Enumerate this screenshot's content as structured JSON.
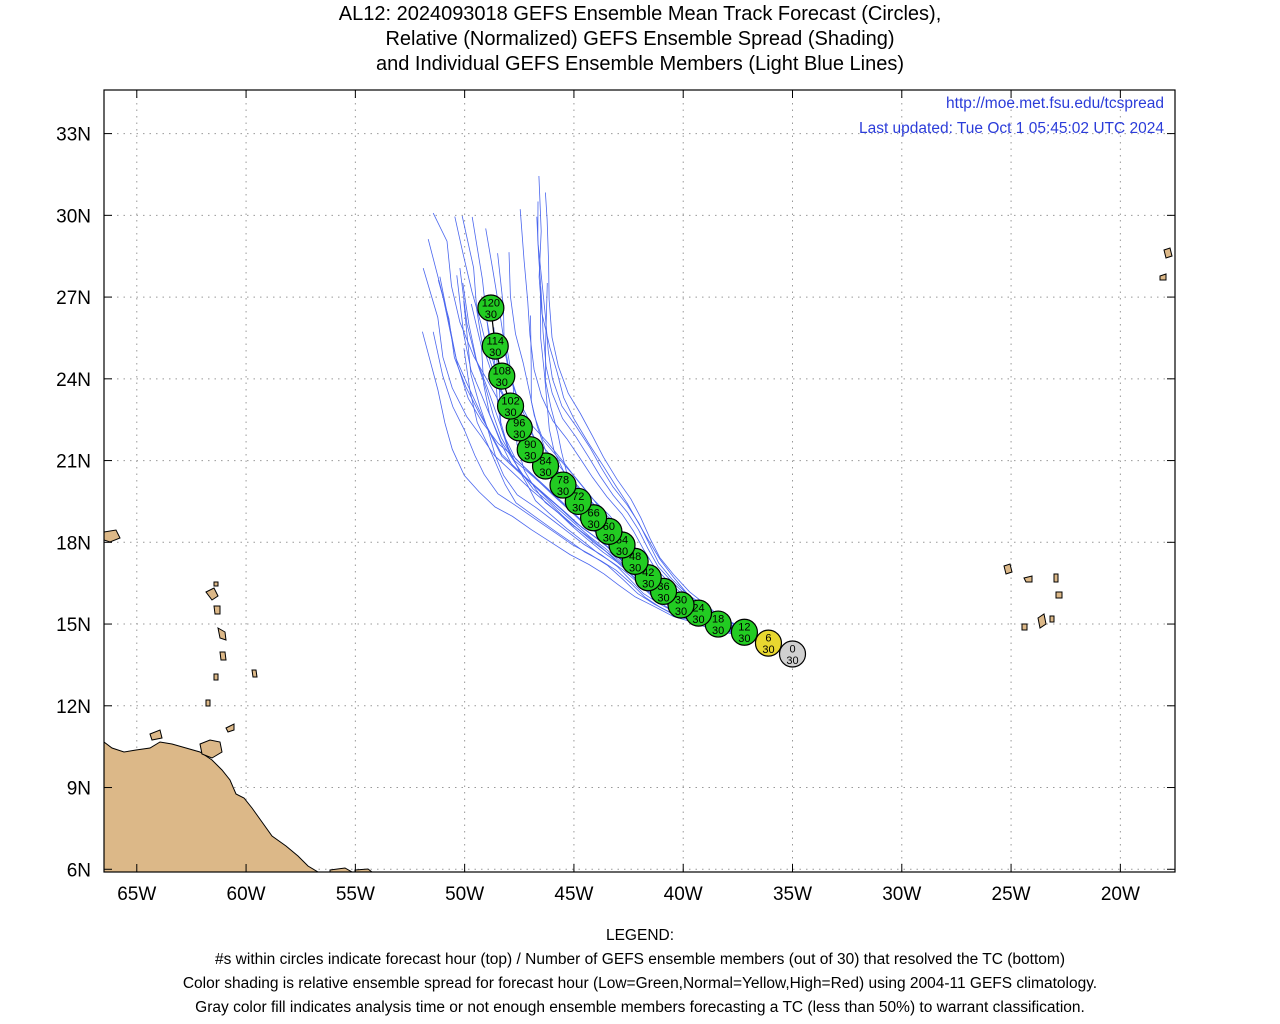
{
  "title": {
    "line1": "AL12: 2024093018 GEFS Ensemble Mean Track Forecast (Circles),",
    "line2": "Relative (Normalized) GEFS Ensemble Spread (Shading)",
    "line3": "and Individual GEFS Ensemble Members (Light Blue Lines)"
  },
  "map_info": {
    "url": "http://moe.met.fsu.edu/tcspread",
    "last_updated": "Last updated: Tue Oct  1 05:45:02 UTC 2024"
  },
  "axes": {
    "lon_range": [
      -66.5,
      -17.5
    ],
    "lat_range": [
      5.9,
      34.6
    ],
    "lon_ticks": [
      -65,
      -60,
      -55,
      -50,
      -45,
      -40,
      -35,
      -30,
      -25,
      -20
    ],
    "lon_labels": [
      "65W",
      "60W",
      "55W",
      "50W",
      "45W",
      "40W",
      "35W",
      "30W",
      "25W",
      "20W"
    ],
    "lat_ticks": [
      6,
      9,
      12,
      15,
      18,
      21,
      24,
      27,
      30,
      33
    ],
    "lat_labels": [
      "6N",
      "9N",
      "12N",
      "15N",
      "18N",
      "21N",
      "24N",
      "27N",
      "30N",
      "33N"
    ],
    "grid": "dotted"
  },
  "colors": {
    "land": "#dcb888",
    "low_spread": "#22cc22",
    "normal_spread": "#e8d830",
    "analysis": "#d0d0d0",
    "member_lines": "#4a66ee",
    "frame": "#000000"
  },
  "forecast_points": [
    {
      "hour": "0",
      "members": "30",
      "lon": -35.0,
      "lat": 13.9,
      "color": "gray"
    },
    {
      "hour": "6",
      "members": "30",
      "lon": -36.1,
      "lat": 14.3,
      "color": "yellow"
    },
    {
      "hour": "12",
      "members": "30",
      "lon": -37.2,
      "lat": 14.7,
      "color": "green"
    },
    {
      "hour": "18",
      "members": "30",
      "lon": -38.4,
      "lat": 15.0,
      "color": "green"
    },
    {
      "hour": "24",
      "members": "30",
      "lon": -39.3,
      "lat": 15.4,
      "color": "green"
    },
    {
      "hour": "30",
      "members": "30",
      "lon": -40.1,
      "lat": 15.7,
      "color": "green"
    },
    {
      "hour": "36",
      "members": "30",
      "lon": -40.9,
      "lat": 16.2,
      "color": "green"
    },
    {
      "hour": "42",
      "members": "30",
      "lon": -41.6,
      "lat": 16.7,
      "color": "green"
    },
    {
      "hour": "48",
      "members": "30",
      "lon": -42.2,
      "lat": 17.3,
      "color": "green"
    },
    {
      "hour": "54",
      "members": "30",
      "lon": -42.8,
      "lat": 17.9,
      "color": "green"
    },
    {
      "hour": "60",
      "members": "30",
      "lon": -43.4,
      "lat": 18.4,
      "color": "green"
    },
    {
      "hour": "66",
      "members": "30",
      "lon": -44.1,
      "lat": 18.9,
      "color": "green"
    },
    {
      "hour": "72",
      "members": "30",
      "lon": -44.8,
      "lat": 19.5,
      "color": "green"
    },
    {
      "hour": "78",
      "members": "30",
      "lon": -45.5,
      "lat": 20.1,
      "color": "green"
    },
    {
      "hour": "84",
      "members": "30",
      "lon": -46.3,
      "lat": 20.8,
      "color": "green"
    },
    {
      "hour": "90",
      "members": "30",
      "lon": -47.0,
      "lat": 21.4,
      "color": "green"
    },
    {
      "hour": "96",
      "members": "30",
      "lon": -47.5,
      "lat": 22.2,
      "color": "green"
    },
    {
      "hour": "102",
      "members": "30",
      "lon": -47.9,
      "lat": 23.0,
      "color": "green"
    },
    {
      "hour": "108",
      "members": "30",
      "lon": -48.3,
      "lat": 24.1,
      "color": "green"
    },
    {
      "hour": "114",
      "members": "30",
      "lon": -48.6,
      "lat": 25.2,
      "color": "green"
    },
    {
      "hour": "120",
      "members": "30",
      "lon": -48.8,
      "lat": 26.6,
      "color": "green"
    }
  ],
  "legend": {
    "heading": "LEGEND:",
    "line1": "#s within circles indicate forecast hour (top) / Number of GEFS ensemble members (out of 30) that resolved the TC (bottom)",
    "line2": "Color shading is relative ensemble spread for forecast hour (Low=Green,Normal=Yellow,High=Red) using 2004-11 GEFS climatology.",
    "line3": "Gray color fill indicates analysis time or not enough ensemble members forecasting a TC (less than 50%) to warrant classification."
  }
}
